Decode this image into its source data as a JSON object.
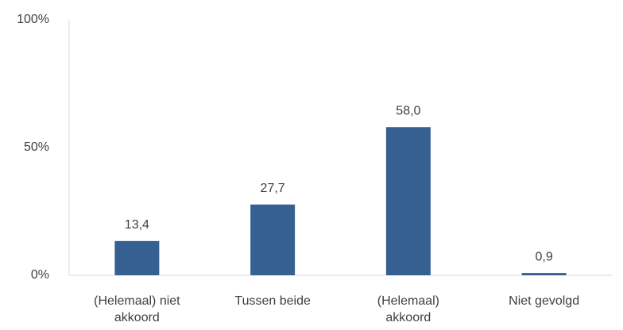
{
  "chart_data": {
    "type": "bar",
    "categories": [
      "(Helemaal) niet akkoord",
      "Tussen beide",
      "(Helemaal) akkoord",
      "Niet gevolgd"
    ],
    "values": [
      13.4,
      27.7,
      58.0,
      0.9
    ],
    "value_labels": [
      "13,4",
      "27,7",
      "58,0",
      "0,9"
    ],
    "color": "#376092",
    "ylim": [
      0,
      100
    ],
    "yticks": [
      {
        "value": 0,
        "label": "0%"
      },
      {
        "value": 50,
        "label": "50%"
      },
      {
        "value": 100,
        "label": "100%"
      }
    ],
    "grid": false
  }
}
